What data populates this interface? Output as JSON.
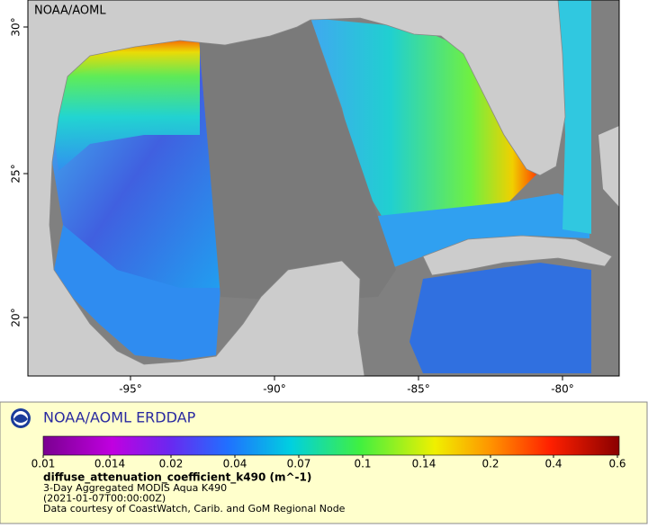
{
  "map": {
    "label": "NOAA/AOML",
    "lat_ticks": [
      "30°",
      "25°",
      "20°"
    ],
    "lon_ticks": [
      "-95°",
      "-90°",
      "-85°",
      "-80°"
    ]
  },
  "legend": {
    "title": "NOAA/AOML ERDDAP",
    "scale_ticks": [
      "0.01",
      "0.014",
      "0.02",
      "0.04",
      "0.07",
      "0.1",
      "0.14",
      "0.2",
      "0.4",
      "0.6"
    ],
    "variable": "diffuse_attenuation_coefficient_k490 (m^-1)",
    "lines": [
      "3-Day Aggregated MODIS Aqua K490",
      "(2021-01-07T00:00:00Z)",
      "Data courtesy of CoastWatch, Carib. and GoM Regional Node"
    ]
  }
}
